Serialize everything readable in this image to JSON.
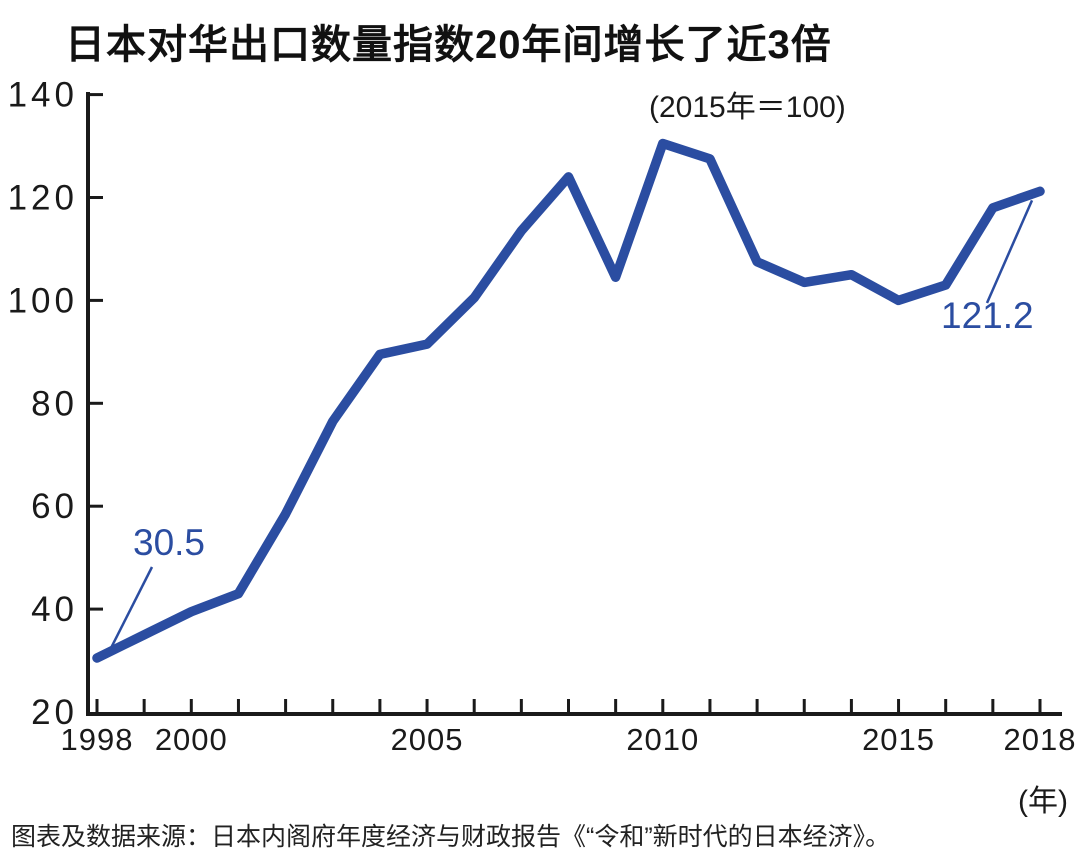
{
  "chart_data": {
    "type": "line",
    "title": "日本对华出口数量指数20年间增长了近3倍",
    "subtitle": "(2015年＝100)",
    "x_unit": "(年)",
    "source": "图表及数据来源：日本内阁府年度经济与财政报告《“令和”新时代的日本经济》。",
    "x": [
      1998,
      1999,
      2000,
      2001,
      2002,
      2003,
      2004,
      2005,
      2006,
      2007,
      2008,
      2009,
      2010,
      2011,
      2012,
      2013,
      2014,
      2015,
      2016,
      2017,
      2018
    ],
    "values": [
      30.5,
      35,
      39.5,
      43,
      58.5,
      76.5,
      89.5,
      91.5,
      100.5,
      113.5,
      124,
      104.5,
      130.5,
      127.5,
      107.5,
      103.5,
      105,
      100,
      103,
      118,
      121.2
    ],
    "ylim": [
      20,
      140
    ],
    "y_ticks": [
      20,
      40,
      60,
      80,
      100,
      120,
      140
    ],
    "x_labeled_ticks": [
      1998,
      2000,
      2005,
      2010,
      2015,
      2018
    ],
    "xlabel": "",
    "ylabel": "",
    "grid": false,
    "legend": "none",
    "line_color": "#2b4da1",
    "axis_color": "#1a1a1a",
    "annotations": [
      {
        "text": "30.5",
        "year": 1998,
        "value": 30.5
      },
      {
        "text": "121.2",
        "year": 2018,
        "value": 121.2
      }
    ]
  }
}
